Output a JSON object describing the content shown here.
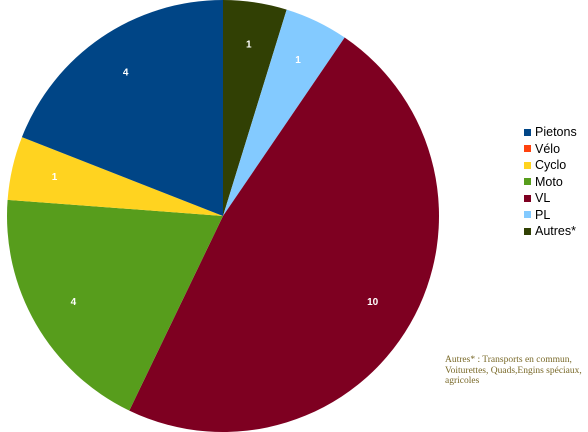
{
  "chart_data": {
    "type": "pie",
    "categories": [
      "Pietons",
      "Vélo",
      "Cyclo",
      "Moto",
      "VL",
      "PL",
      "Autres*"
    ],
    "values": [
      4,
      0,
      1,
      4,
      10,
      1,
      1
    ],
    "colors": [
      "#004586",
      "#ff420e",
      "#ffd320",
      "#579d1c",
      "#7e0021",
      "#83caff",
      "#314004"
    ],
    "slice_order": [
      "Autres*",
      "PL",
      "VL",
      "Moto",
      "Cyclo",
      "Pietons"
    ],
    "direction": "clockwise from top",
    "data_labels": true,
    "legend_position": "right"
  },
  "footnote": "Autres* : Transports en commun,  Voiturettes, Quads,Engins spéciaux, agricoles"
}
